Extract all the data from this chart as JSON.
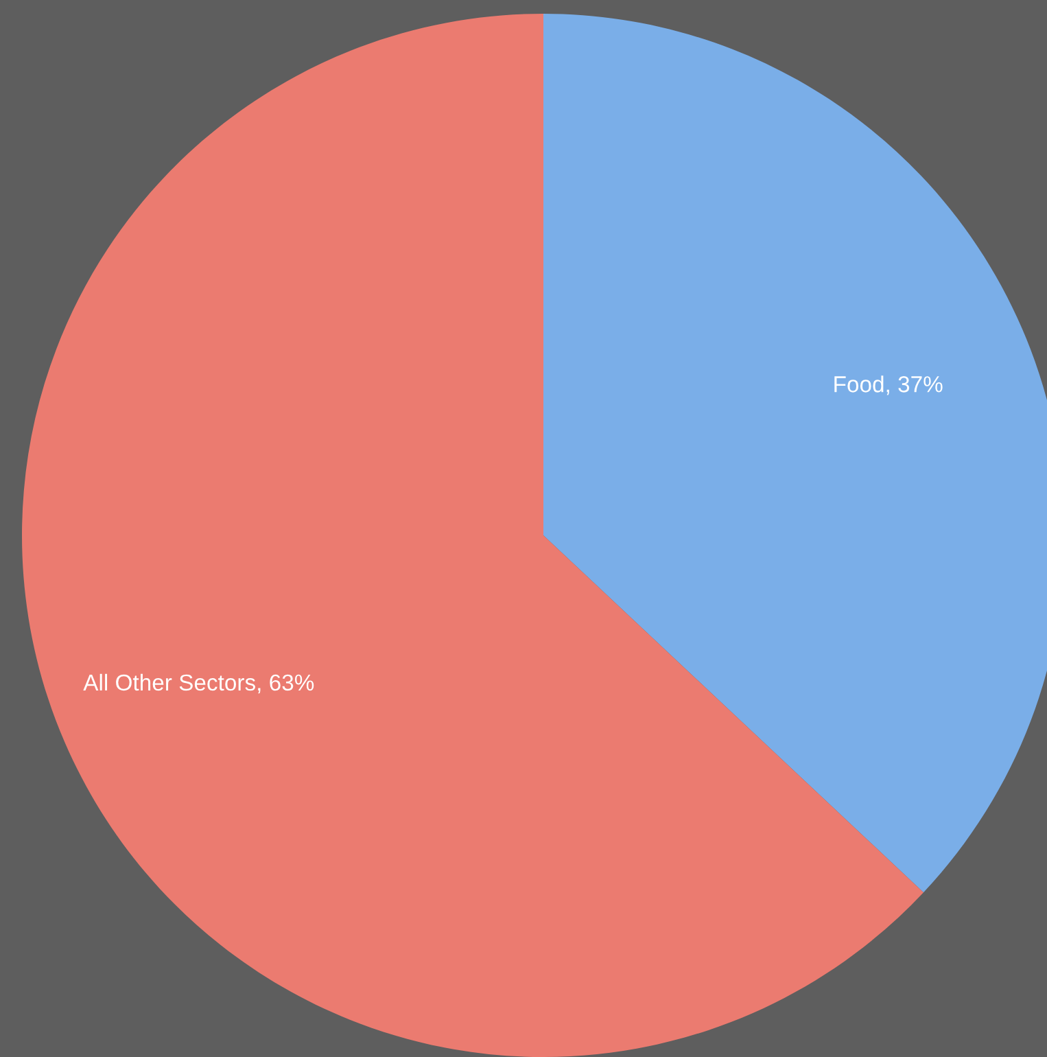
{
  "chart_data": {
    "type": "pie",
    "categories": [
      "Food",
      "All Other Sectors"
    ],
    "values": [
      37,
      63
    ],
    "colors": [
      "#7aaee8",
      "#eb7b70"
    ],
    "value_labels": [
      "37%",
      "63%"
    ],
    "legend": false
  }
}
